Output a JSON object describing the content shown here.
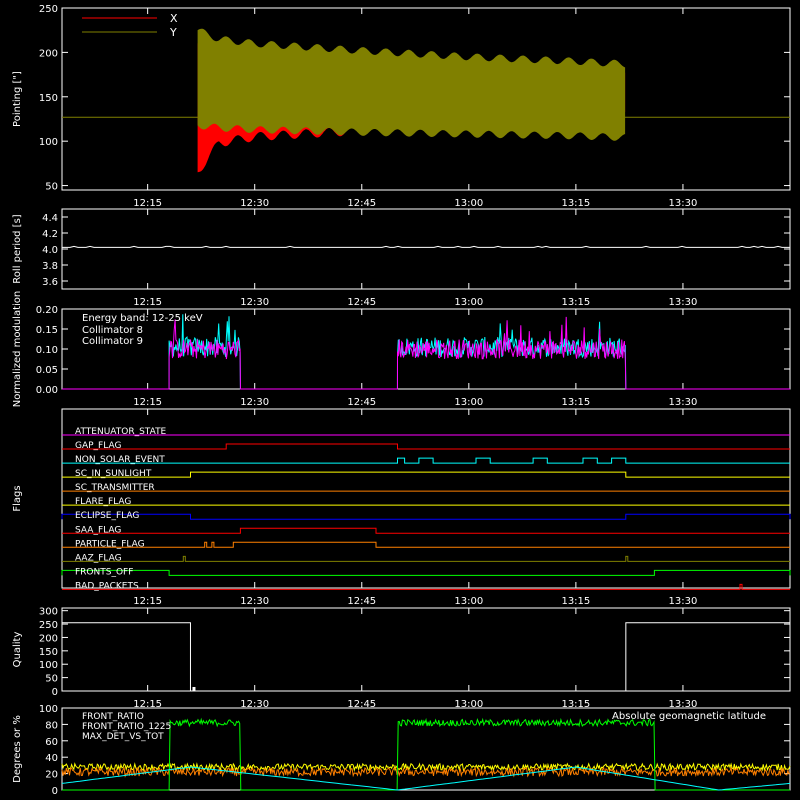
{
  "chart_data": [
    {
      "type": "line",
      "ylabel": "Pointing [\"]",
      "ylim": [
        45,
        250
      ],
      "yticks": [
        50,
        100,
        150,
        200,
        250
      ],
      "xlim": [
        "12:03",
        "13:45"
      ],
      "xticks": [
        "12:15",
        "12:30",
        "12:45",
        "13:00",
        "13:15",
        "13:30"
      ],
      "grid": false,
      "legend": "top-left",
      "series": [
        {
          "name": "X",
          "color": "#ff0000",
          "envelope": {
            "t": [
              "12:22",
              "12:25",
              "12:30",
              "12:45",
              "13:00",
              "13:15",
              "13:22"
            ],
            "upper": [
              210,
              200,
              192,
              183,
              178,
              180,
              182
            ],
            "lower": [
              65,
              98,
              105,
              112,
              120,
              126,
              128
            ]
          },
          "baseline": 127
        },
        {
          "name": "Y",
          "color": "#808000",
          "envelope": {
            "t": [
              "12:22",
              "12:25",
              "12:30",
              "12:45",
              "13:00",
              "13:15",
              "13:22"
            ],
            "upper": [
              225,
              215,
              210,
              202,
              195,
              190,
              187
            ],
            "lower": [
              118,
              115,
              113,
              110,
              108,
              106,
              104
            ]
          },
          "baseline": 127
        }
      ]
    },
    {
      "type": "line",
      "ylabel": "Roll period [s]",
      "ylim": [
        3.5,
        4.5
      ],
      "yticks": [
        "3.6",
        "3.8",
        "4.0",
        "4.2",
        "4.4"
      ],
      "xlim": [
        "12:03",
        "13:45"
      ],
      "xticks": [
        "12:15",
        "12:30",
        "12:45",
        "13:00",
        "13:15",
        "13:30"
      ],
      "series": [
        {
          "color": "#ffffff",
          "value": 4.02
        }
      ]
    },
    {
      "type": "line",
      "ylabel": "Normalized modulation",
      "ylim": [
        0,
        0.2
      ],
      "yticks": [
        "0.00",
        "0.05",
        "0.10",
        "0.15",
        "0.20"
      ],
      "xlim": [
        "12:03",
        "13:45"
      ],
      "xticks": [
        "12:15",
        "12:30",
        "12:45",
        "13:00",
        "13:15",
        "13:30"
      ],
      "annotation": "Energy band: 12-25 keV",
      "legend": "top-left",
      "active_intervals": [
        [
          "12:18",
          "12:28"
        ],
        [
          "12:50",
          "13:22"
        ]
      ],
      "series": [
        {
          "name": "Collimator 8",
          "color": "#00ffff",
          "mean": 0.105
        },
        {
          "name": "Collimator 9",
          "color": "#ff00ff",
          "mean": 0.1
        }
      ]
    },
    {
      "type": "line",
      "ylabel": "Flags",
      "xlim": [
        "12:03",
        "13:45"
      ],
      "xticks": [
        "12:15",
        "12:30",
        "12:45",
        "13:00",
        "13:15",
        "13:30"
      ],
      "flags": [
        {
          "name": "ATTENUATOR_STATE",
          "color": "#ff00ff",
          "high": []
        },
        {
          "name": "GAP_FLAG",
          "color": "#ff0000",
          "high": [
            [
              "12:26",
              "12:50"
            ]
          ]
        },
        {
          "name": "NON_SOLAR_EVENT",
          "color": "#00ffff",
          "high": [
            [
              "12:50",
              "12:51"
            ],
            [
              "12:53",
              "12:55"
            ],
            [
              "13:01",
              "13:03"
            ],
            [
              "13:09",
              "13:11"
            ],
            [
              "13:16",
              "13:18"
            ],
            [
              "13:20",
              "13:22"
            ]
          ]
        },
        {
          "name": "SC_IN_SUNLIGHT",
          "color": "#ffff00",
          "high": [
            [
              "12:21",
              "13:22"
            ]
          ]
        },
        {
          "name": "SC_TRANSMITTER",
          "color": "#ff8000",
          "high": []
        },
        {
          "name": "FLARE_FLAG",
          "color": "#ffff00",
          "high": []
        },
        {
          "name": "ECLIPSE_FLAG",
          "color": "#0000ff",
          "high": [
            [
              "12:03",
              "12:21"
            ],
            [
              "13:22",
              "13:45"
            ]
          ]
        },
        {
          "name": "SAA_FLAG",
          "color": "#ff0000",
          "high": [
            [
              "12:28",
              "12:47"
            ]
          ]
        },
        {
          "name": "PARTICLE_FLAG",
          "color": "#ff8000",
          "high": [
            [
              "12:23",
              "12:23"
            ],
            [
              "12:24",
              "12:24"
            ],
            [
              "12:27",
              "12:47"
            ]
          ]
        },
        {
          "name": "AAZ_FLAG",
          "color": "#808000",
          "high": [
            [
              "12:20",
              "12:20"
            ],
            [
              "13:22",
              "13:22"
            ]
          ]
        },
        {
          "name": "FRONTS_OFF",
          "color": "#00ff00",
          "high": [
            [
              "12:03",
              "12:18"
            ],
            [
              "13:26",
              "13:45"
            ]
          ]
        },
        {
          "name": "BAD_PACKETS",
          "color": "#ff0000",
          "high": [
            [
              "13:38",
              "13:38"
            ]
          ]
        }
      ]
    },
    {
      "type": "line",
      "ylabel": "Quality",
      "ylim": [
        0,
        310
      ],
      "yticks": [
        0,
        50,
        100,
        150,
        200,
        250,
        300
      ],
      "xlim": [
        "12:03",
        "13:45"
      ],
      "xticks": [
        "12:15",
        "12:30",
        "12:45",
        "13:00",
        "13:15",
        "13:30"
      ],
      "series": [
        {
          "color": "#ffffff",
          "high_value": 255,
          "high_intervals": [
            [
              "12:03",
              "12:21"
            ],
            [
              "13:22",
              "13:45"
            ]
          ]
        }
      ]
    },
    {
      "type": "line",
      "ylabel": "Degrees or %",
      "ylim": [
        0,
        100
      ],
      "yticks": [
        0,
        20,
        40,
        60,
        80,
        100
      ],
      "xlim": [
        "12:03",
        "13:45"
      ],
      "annotation": "Absolute geomagnetic latitude",
      "legend": "top-left",
      "series": [
        {
          "name": "FRONT_RATIO",
          "color": "#ffff00",
          "mean": 28
        },
        {
          "name": "FRONT_RATIO_1225",
          "color": "#00ff00",
          "mean": 82,
          "active_intervals": [
            [
              "12:18",
              "12:28"
            ],
            [
              "12:50",
              "13:26"
            ]
          ]
        },
        {
          "name": "MAX_DET_VS_TOT",
          "color": "#ff8000",
          "mean": 22
        },
        {
          "name": "Absolute geomagnetic latitude",
          "color": "#00ffff",
          "points": [
            [
              "12:03",
              8
            ],
            [
              "12:21",
              28
            ],
            [
              "12:50",
              0
            ],
            [
              "13:15",
              28
            ],
            [
              "13:35",
              0
            ],
            [
              "13:45",
              8
            ]
          ]
        }
      ]
    }
  ]
}
